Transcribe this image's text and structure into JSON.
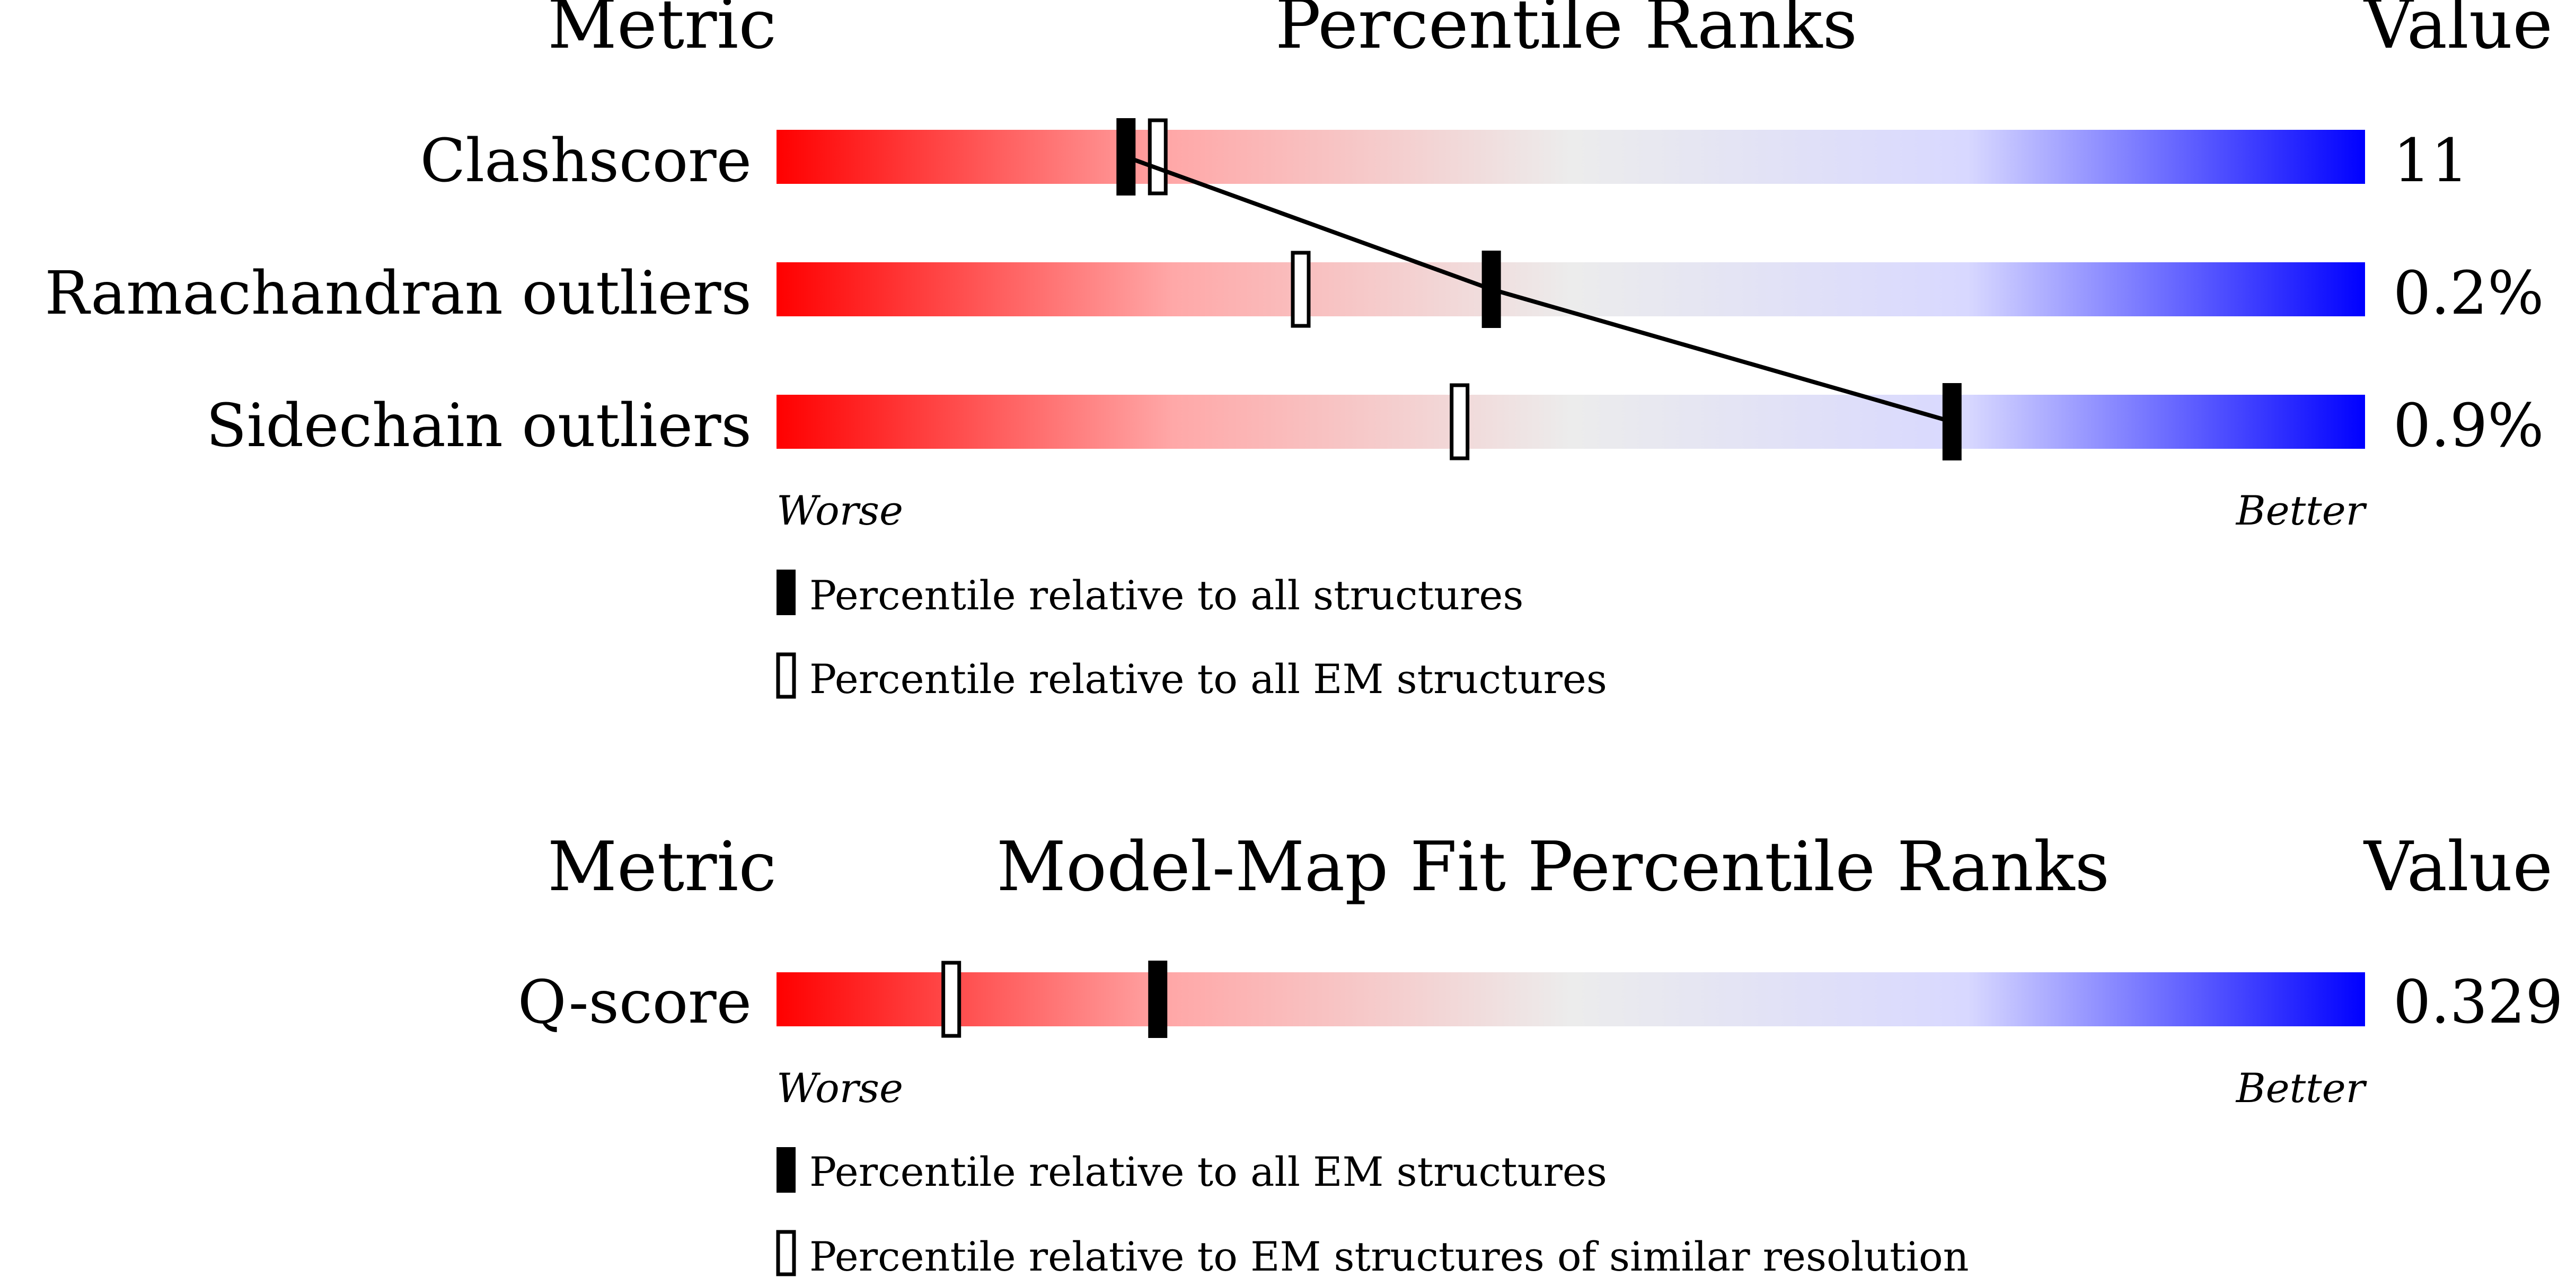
{
  "colors": {
    "worse": "#ff0000",
    "mid": "#ececec",
    "better": "#0000ff",
    "marker": "#000000"
  },
  "chart_data": [
    {
      "type": "percentile-slider",
      "header_metric": "Metric",
      "header_title": "Percentile Ranks",
      "header_value": "Value",
      "axis_worse": "Worse",
      "axis_better": "Better",
      "range": [
        0,
        100
      ],
      "rows": [
        {
          "metric": "Clashscore",
          "value": "11",
          "percentile_all": 22,
          "percentile_em": 24
        },
        {
          "metric": "Ramachandran outliers",
          "value": "0.2%",
          "percentile_all": 45,
          "percentile_em": 33
        },
        {
          "metric": "Sidechain outliers",
          "value": "0.9%",
          "percentile_all": 74,
          "percentile_em": 43
        }
      ],
      "legend": [
        {
          "marker": "filled",
          "label": "Percentile relative to all structures"
        },
        {
          "marker": "open",
          "label": "Percentile relative to all EM structures"
        }
      ]
    },
    {
      "type": "percentile-slider",
      "header_metric": "Metric",
      "header_title": "Model-Map Fit Percentile Ranks",
      "header_value": "Value",
      "axis_worse": "Worse",
      "axis_better": "Better",
      "range": [
        0,
        100
      ],
      "rows": [
        {
          "metric": "Q-score",
          "value": "0.329",
          "percentile_all": 24,
          "percentile_em": 11
        }
      ],
      "legend": [
        {
          "marker": "filled",
          "label": "Percentile relative to all EM structures"
        },
        {
          "marker": "open",
          "label": "Percentile relative to EM structures of similar resolution"
        }
      ]
    }
  ]
}
